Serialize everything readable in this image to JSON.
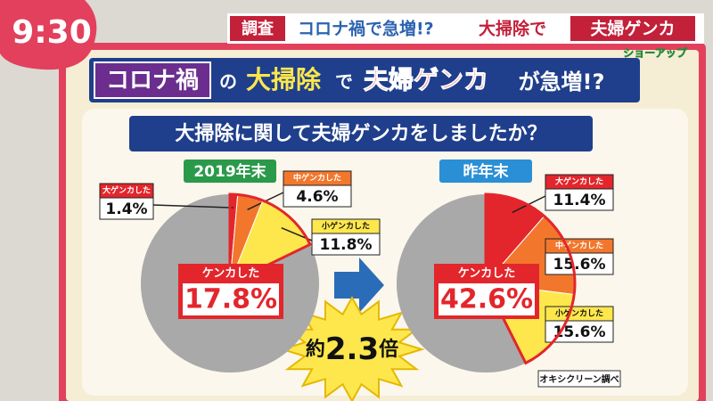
{
  "clock": "9:30",
  "banner": {
    "tag": "調査",
    "text1": "コロナ禍で急増!?",
    "text2": "大掃除で",
    "text3": "夫婦ゲンカ"
  },
  "show": "ショーアップ",
  "headline": {
    "p1": "コロナ禍",
    "p2": "の",
    "p3": "大掃除",
    "p4": "で",
    "p5": "夫婦ゲンカ",
    "p6": "が急増!?"
  },
  "question": "大掃除に関して夫婦ゲンカをしましたか？",
  "chart_data": [
    {
      "type": "pie",
      "title": "2019年末",
      "categories": [
        "大ゲンカした",
        "中ゲンカした",
        "小ゲンカした"
      ],
      "values": [
        1.4,
        4.6,
        11.8
      ],
      "value_labels": [
        "1.4%",
        "4.6%",
        "11.8%"
      ],
      "colors": [
        "#e3262c",
        "#f2772c",
        "#fde74c"
      ],
      "rest_color": "#a9a9a9",
      "total_name": "ケンカした",
      "total": 17.8,
      "total_label": "17.8%"
    },
    {
      "type": "pie",
      "title": "昨年末",
      "categories": [
        "大ゲンカした",
        "中ゲンカした",
        "小ゲンカした"
      ],
      "values": [
        11.4,
        15.6,
        15.6
      ],
      "value_labels": [
        "11.4%",
        "15.6%",
        "15.6%"
      ],
      "colors": [
        "#e3262c",
        "#f2772c",
        "#fde74c"
      ],
      "rest_color": "#a9a9a9",
      "total_name": "ケンカした",
      "total": 42.6,
      "total_label": "42.6%"
    }
  ],
  "ratio": {
    "prefix": "約",
    "number": "2.3",
    "suffix": "倍"
  },
  "source": "オキシクリーン調べ"
}
